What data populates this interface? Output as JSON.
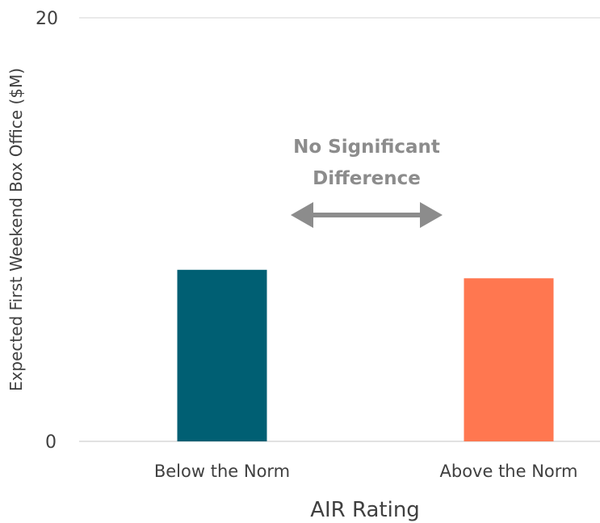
{
  "chart_data": {
    "type": "bar",
    "categories": [
      "Below the Norm",
      "Above the Norm"
    ],
    "values": [
      8.1,
      7.7
    ],
    "colors": [
      "#005f73",
      "#ff7750"
    ],
    "xlabel": "AIR Rating",
    "ylabel": "Expected First Weekend Box Office ($M)",
    "ylim": [
      0,
      20
    ],
    "yticks": [
      "0",
      "20"
    ],
    "grid": true,
    "annotation": {
      "lines": [
        "No Significant",
        "Difference"
      ],
      "arrow": "double-headed",
      "color": "#8c8c8c"
    }
  }
}
